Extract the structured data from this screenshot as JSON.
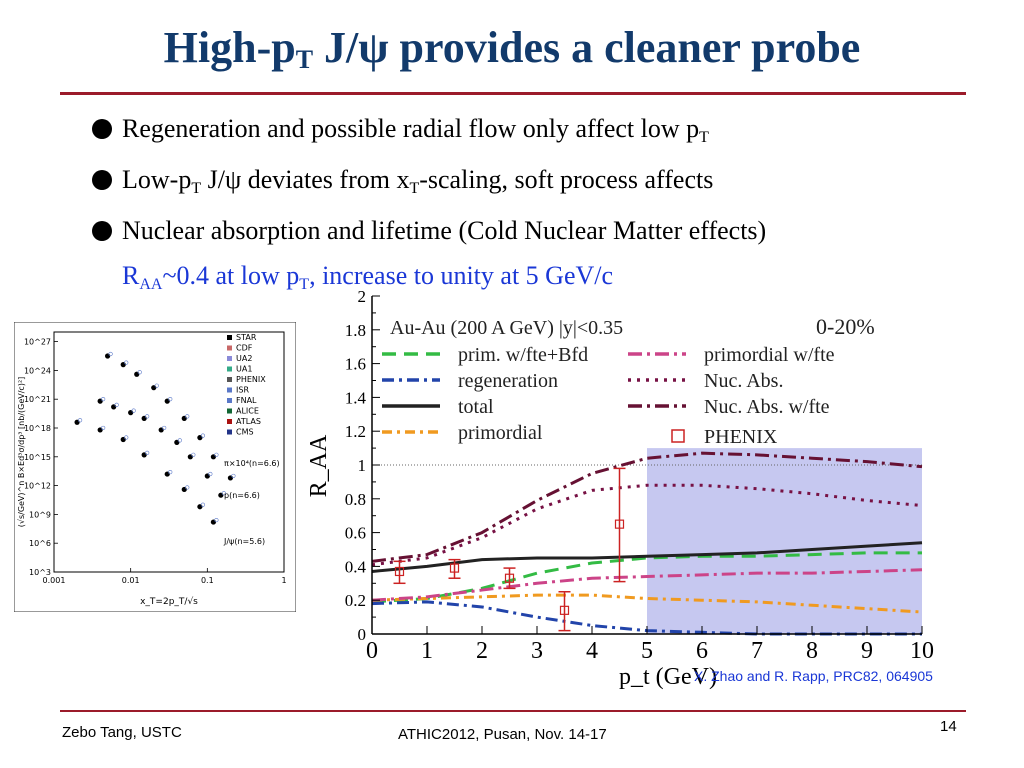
{
  "slide": {
    "title_pre": "High-p",
    "title_sub": "T",
    "title_post": " J/ψ provides a cleaner probe",
    "bullets": [
      {
        "a": "Regeneration and possible radial flow only affect low p",
        "sub1": "T",
        "b": "",
        "sub2": "",
        "c": ""
      },
      {
        "a": "Low-p",
        "sub1": "T",
        "b": " J/ψ deviates from x",
        "sub2": "T",
        "c": "-scaling, soft process affects"
      },
      {
        "a": "Nuclear absorption and lifetime (Cold Nuclear Matter effects)",
        "sub1": "",
        "b": "",
        "sub2": "",
        "c": ""
      }
    ],
    "raa_line": {
      "a": "R",
      "sub1": "AA",
      "b": "~0.4 at low p",
      "sub2": "T",
      "c": ", increase to unity at 5 GeV/c"
    },
    "citation": "X. Zhao and R. Rapp, PRC82, 064905",
    "footer_left": "Zebo Tang, USTC",
    "footer_center": "ATHIC2012, Pusan, Nov. 14-17",
    "page_number": "14",
    "colors": {
      "title": "#123a6b",
      "rule": "#9b1b2a",
      "highlight": "#1a37d6"
    }
  },
  "chart_data": [
    {
      "type": "scatter",
      "title": "",
      "xlabel": "x_T=2p_T/√s",
      "ylabel": "(√s/GeV)^n B×Ed³σ/dp³ [nb/(GeV/c)²]",
      "x_log": true,
      "y_log": true,
      "x_ticks": [
        "0.001",
        "0.01",
        "0.1",
        "1"
      ],
      "y_ticks": [
        "10^3",
        "10^6",
        "10^9",
        "10^12",
        "10^15",
        "10^18",
        "10^21",
        "10^24",
        "10^27"
      ],
      "legend": [
        "STAR",
        "CDF",
        "UA2",
        "UA1",
        "PHENIX",
        "ISR",
        "FNAL",
        "ALICE",
        "ATLAS",
        "CMS"
      ],
      "legend_placement": "top-right",
      "annotations": [
        "π×10⁴(n=6.6)",
        "p(n=6.6)",
        "J/ψ(n=5.6)"
      ],
      "series": [
        {
          "name": "π×10⁴(n=6.6)",
          "x": [
            0.005,
            0.008,
            0.012,
            0.02,
            0.03,
            0.05,
            0.08,
            0.12,
            0.2
          ],
          "y_log10": [
            25.5,
            24.6,
            23.6,
            22.2,
            20.8,
            19.0,
            17.0,
            15.0,
            12.8
          ]
        },
        {
          "name": "p(n=6.6)",
          "x": [
            0.004,
            0.006,
            0.01,
            0.015,
            0.025,
            0.04,
            0.06,
            0.1,
            0.15
          ],
          "y_log10": [
            20.8,
            20.2,
            19.6,
            19.0,
            17.8,
            16.5,
            15.0,
            13.0,
            11.0
          ]
        },
        {
          "name": "J/ψ(n=5.6)",
          "x": [
            0.002,
            0.004,
            0.008,
            0.015,
            0.03,
            0.05,
            0.08,
            0.12
          ],
          "y_log10": [
            18.6,
            17.8,
            16.8,
            15.2,
            13.2,
            11.6,
            9.8,
            8.2
          ]
        }
      ]
    },
    {
      "type": "line",
      "title": "Au-Au (200 A GeV) |y|<0.35",
      "subtitle": "0-20%",
      "xlabel": "p_t (GeV)",
      "ylabel": "R_AA",
      "xlim": [
        0,
        10
      ],
      "ylim": [
        0,
        2
      ],
      "x_ticks": [
        0,
        1,
        2,
        3,
        4,
        5,
        6,
        7,
        8,
        9,
        10
      ],
      "y_ticks": [
        0,
        0.2,
        0.4,
        0.6,
        0.8,
        1,
        1.2,
        1.4,
        1.6,
        1.8,
        2
      ],
      "reference_line": 1,
      "shaded_region": {
        "x_from": 5,
        "x_to": 10,
        "y_to": 1.1
      },
      "legend_placement": "top",
      "series": [
        {
          "name": "prim. w/fte+Bfd",
          "color": "#33bb44",
          "dash": "14,8",
          "x": [
            0,
            1,
            2,
            3,
            4,
            5,
            6,
            7,
            8,
            9,
            10
          ],
          "y": [
            0.19,
            0.21,
            0.27,
            0.36,
            0.42,
            0.45,
            0.46,
            0.46,
            0.47,
            0.48,
            0.48
          ]
        },
        {
          "name": "regeneration",
          "color": "#2244aa",
          "dash": "12,5,3,5",
          "x": [
            0,
            1,
            2,
            3,
            4,
            5,
            6,
            7,
            8,
            9,
            10
          ],
          "y": [
            0.18,
            0.19,
            0.16,
            0.1,
            0.05,
            0.02,
            0.01,
            0.0,
            0.0,
            0.0,
            0.0
          ]
        },
        {
          "name": "total",
          "color": "#222222",
          "dash": "",
          "x": [
            0,
            1,
            2,
            3,
            4,
            5,
            6,
            7,
            8,
            9,
            10
          ],
          "y": [
            0.37,
            0.4,
            0.44,
            0.45,
            0.45,
            0.46,
            0.47,
            0.48,
            0.5,
            0.52,
            0.54
          ]
        },
        {
          "name": "primordial",
          "color": "#f09a20",
          "dash": "10,5,3,5",
          "x": [
            0,
            1,
            2,
            3,
            4,
            5,
            6,
            7,
            8,
            9,
            10
          ],
          "y": [
            0.2,
            0.21,
            0.22,
            0.23,
            0.23,
            0.21,
            0.2,
            0.19,
            0.17,
            0.15,
            0.13
          ]
        },
        {
          "name": "primordial w/fte",
          "color": "#cc4488",
          "dash": "14,5,3,5",
          "x": [
            0,
            1,
            2,
            3,
            4,
            5,
            6,
            7,
            8,
            9,
            10
          ],
          "y": [
            0.2,
            0.22,
            0.26,
            0.3,
            0.33,
            0.34,
            0.35,
            0.36,
            0.36,
            0.37,
            0.38
          ]
        },
        {
          "name": "Nuc. Abs.",
          "color": "#771144",
          "dash": "3,6",
          "x": [
            0,
            1,
            2,
            3,
            4,
            5,
            6,
            7,
            8,
            9,
            10
          ],
          "y": [
            0.41,
            0.45,
            0.57,
            0.74,
            0.85,
            0.88,
            0.88,
            0.86,
            0.83,
            0.79,
            0.76
          ]
        },
        {
          "name": "Nuc. Abs. w/fte",
          "color": "#661133",
          "dash": "14,5,3,5",
          "x": [
            0,
            1,
            2,
            3,
            4,
            5,
            6,
            7,
            8,
            9,
            10
          ],
          "y": [
            0.43,
            0.47,
            0.6,
            0.79,
            0.95,
            1.04,
            1.07,
            1.06,
            1.04,
            1.02,
            0.99
          ]
        }
      ],
      "phenix": {
        "name": "PHENIX",
        "color": "#cc2222",
        "points": [
          {
            "x": 0.5,
            "y": 0.37,
            "lo": 0.3,
            "hi": 0.43
          },
          {
            "x": 1.5,
            "y": 0.39,
            "lo": 0.33,
            "hi": 0.44
          },
          {
            "x": 2.5,
            "y": 0.33,
            "lo": 0.27,
            "hi": 0.39
          },
          {
            "x": 3.5,
            "y": 0.14,
            "lo": 0.02,
            "hi": 0.25
          },
          {
            "x": 4.5,
            "y": 0.65,
            "lo": 0.31,
            "hi": 0.98
          }
        ]
      }
    }
  ]
}
